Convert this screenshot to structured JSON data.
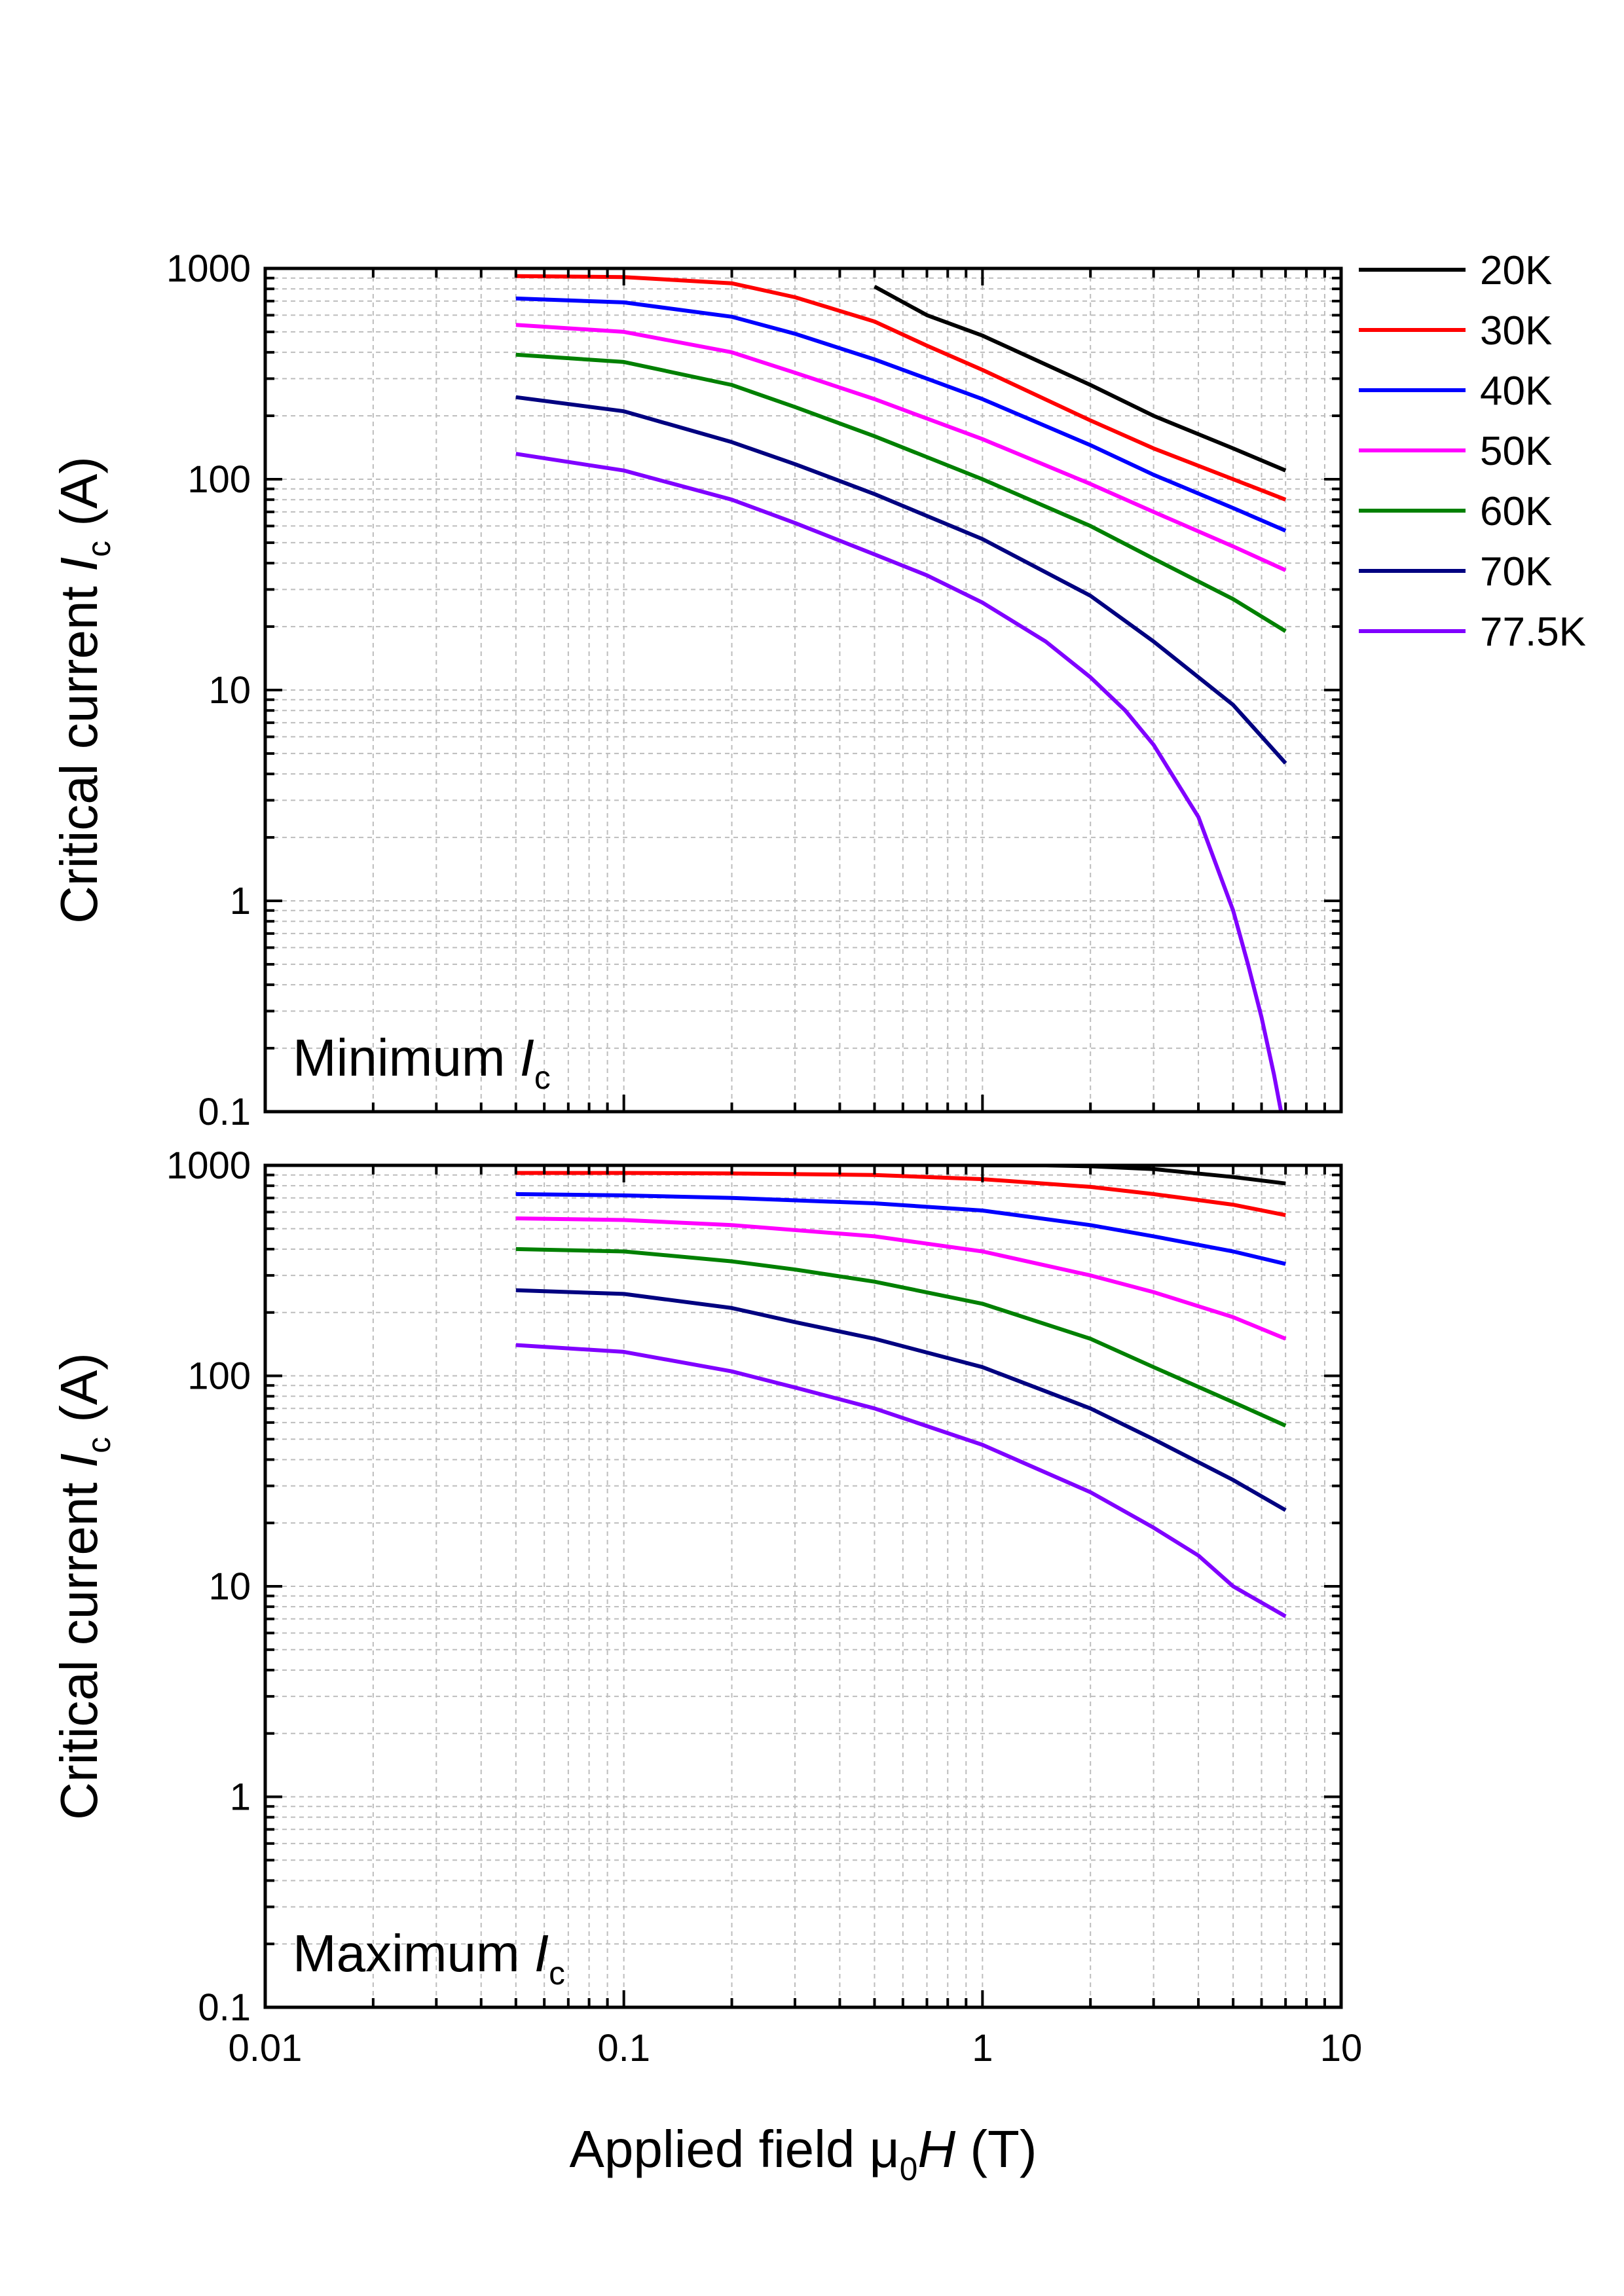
{
  "chart_data": [
    {
      "type": "line",
      "panel_label": {
        "text": "Minimum ",
        "italic": "I",
        "sub": "c"
      },
      "ylabel": {
        "text": "Critical current ",
        "italic": "I",
        "sub": "c",
        "suffix": " (A)"
      },
      "xscale": "log",
      "yscale": "log",
      "xlim": [
        0.01,
        10
      ],
      "ylim": [
        0.1,
        1000
      ],
      "yticks": [
        "0.1",
        "1",
        "10",
        "100",
        "1000"
      ],
      "grid": true,
      "legend": "outside-right",
      "series": [
        {
          "name": "20K",
          "color": "#000000",
          "x": [
            0.5,
            0.7,
            1,
            2,
            3,
            5,
            7
          ],
          "y": [
            820,
            600,
            480,
            280,
            200,
            140,
            110
          ]
        },
        {
          "name": "30K",
          "color": "#ff0000",
          "x": [
            0.05,
            0.1,
            0.2,
            0.3,
            0.5,
            0.7,
            1,
            2,
            3,
            5,
            7
          ],
          "y": [
            920,
            910,
            850,
            730,
            560,
            430,
            330,
            190,
            140,
            100,
            80
          ]
        },
        {
          "name": "40K",
          "color": "#0000ff",
          "x": [
            0.05,
            0.1,
            0.2,
            0.3,
            0.5,
            1,
            2,
            3,
            5,
            7
          ],
          "y": [
            720,
            690,
            590,
            490,
            370,
            240,
            145,
            105,
            73,
            57
          ]
        },
        {
          "name": "50K",
          "color": "#ff00ff",
          "x": [
            0.05,
            0.1,
            0.2,
            0.3,
            0.5,
            1,
            2,
            3,
            5,
            7
          ],
          "y": [
            540,
            500,
            400,
            320,
            240,
            155,
            95,
            70,
            48,
            37
          ]
        },
        {
          "name": "60K",
          "color": "#008000",
          "x": [
            0.05,
            0.1,
            0.2,
            0.3,
            0.5,
            1,
            2,
            3,
            5,
            7
          ],
          "y": [
            390,
            360,
            280,
            220,
            160,
            100,
            60,
            42,
            27,
            19
          ]
        },
        {
          "name": "70K",
          "color": "#000080",
          "x": [
            0.05,
            0.1,
            0.2,
            0.3,
            0.5,
            1,
            2,
            3,
            5,
            7
          ],
          "y": [
            245,
            210,
            150,
            118,
            85,
            52,
            28,
            17,
            8.5,
            4.5
          ]
        },
        {
          "name": "77.5K",
          "color": "#8000ff",
          "x": [
            0.05,
            0.1,
            0.2,
            0.3,
            0.5,
            0.7,
            1,
            1.5,
            2,
            2.5,
            3,
            4,
            5,
            5.5,
            6,
            6.5,
            6.8
          ],
          "y": [
            132,
            110,
            80,
            62,
            44,
            35,
            26,
            17,
            11.5,
            8,
            5.5,
            2.5,
            0.9,
            0.5,
            0.28,
            0.15,
            0.1
          ]
        }
      ]
    },
    {
      "type": "line",
      "panel_label": {
        "text": "Maximum ",
        "italic": "I",
        "sub": "c"
      },
      "ylabel": {
        "text": "Critical current ",
        "italic": "I",
        "sub": "c",
        "suffix": " (A)"
      },
      "xlabel": {
        "text": "Applied field μ",
        "sub": "0",
        "italic": "H",
        "suffix": " (T)"
      },
      "xscale": "log",
      "yscale": "log",
      "xlim": [
        0.01,
        10
      ],
      "ylim": [
        0.1,
        1000
      ],
      "xticks": [
        "0.01",
        "0.1",
        "1",
        "10"
      ],
      "yticks": [
        "0.1",
        "1",
        "10",
        "100",
        "1000"
      ],
      "grid": true,
      "series": [
        {
          "name": "20K",
          "color": "#000000",
          "x": [
            1,
            1.5,
            2,
            3,
            5,
            7
          ],
          "y": [
            1000,
            1000,
            990,
            960,
            880,
            820
          ]
        },
        {
          "name": "30K",
          "color": "#ff0000",
          "x": [
            0.05,
            0.1,
            0.2,
            0.5,
            1,
            2,
            3,
            5,
            7
          ],
          "y": [
            920,
            920,
            915,
            900,
            860,
            790,
            730,
            650,
            580
          ]
        },
        {
          "name": "40K",
          "color": "#0000ff",
          "x": [
            0.05,
            0.1,
            0.2,
            0.5,
            1,
            2,
            3,
            5,
            7
          ],
          "y": [
            730,
            720,
            700,
            660,
            610,
            520,
            460,
            390,
            340
          ]
        },
        {
          "name": "50K",
          "color": "#ff00ff",
          "x": [
            0.05,
            0.1,
            0.2,
            0.5,
            1,
            2,
            3,
            5,
            7
          ],
          "y": [
            560,
            550,
            520,
            460,
            390,
            300,
            250,
            190,
            150
          ]
        },
        {
          "name": "60K",
          "color": "#008000",
          "x": [
            0.05,
            0.1,
            0.2,
            0.3,
            0.5,
            1,
            2,
            3,
            5,
            7
          ],
          "y": [
            400,
            390,
            350,
            320,
            280,
            220,
            150,
            110,
            75,
            58
          ]
        },
        {
          "name": "70K",
          "color": "#000080",
          "x": [
            0.05,
            0.1,
            0.2,
            0.3,
            0.5,
            1,
            2,
            3,
            5,
            7
          ],
          "y": [
            255,
            245,
            210,
            180,
            150,
            110,
            70,
            50,
            32,
            23
          ]
        },
        {
          "name": "77.5K",
          "color": "#8000ff",
          "x": [
            0.05,
            0.1,
            0.2,
            0.3,
            0.5,
            1,
            2,
            3,
            4,
            5,
            7
          ],
          "y": [
            140,
            130,
            105,
            88,
            70,
            47,
            28,
            19,
            14,
            10,
            7.2
          ]
        }
      ]
    }
  ]
}
